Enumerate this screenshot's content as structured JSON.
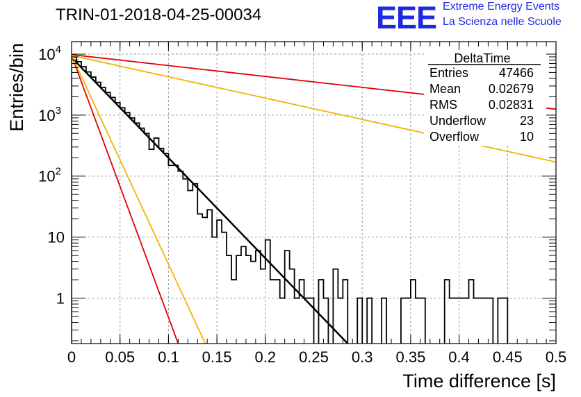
{
  "header": {
    "title": "TRIN-01-2018-04-25-00034",
    "logo_text": "EEE",
    "logo_line1": "Extreme Energy Events",
    "logo_line2": "La Scienza nelle Scuole",
    "logo_color": "#1f2ae0"
  },
  "stats_box": {
    "title": "DeltaTime",
    "rows": [
      {
        "label": "Entries",
        "value": "47466"
      },
      {
        "label": "Mean",
        "value": "0.02679"
      },
      {
        "label": "RMS",
        "value": "0.02831"
      },
      {
        "label": "Underflow",
        "value": "23"
      },
      {
        "label": "Overflow",
        "value": "10"
      }
    ]
  },
  "chart_data": {
    "type": "bar",
    "style": "step-histogram",
    "xlabel": "Time difference [s]",
    "ylabel": "Entries/bin",
    "xlim": [
      0,
      0.5
    ],
    "ylim": [
      0.18,
      16000
    ],
    "yscale": "log",
    "grid": true,
    "x_ticks": [
      {
        "value": 0,
        "label": "0"
      },
      {
        "value": 0.05,
        "label": "0.05"
      },
      {
        "value": 0.1,
        "label": "0.1"
      },
      {
        "value": 0.15,
        "label": "0.15"
      },
      {
        "value": 0.2,
        "label": "0.2"
      },
      {
        "value": 0.25,
        "label": "0.25"
      },
      {
        "value": 0.3,
        "label": "0.3"
      },
      {
        "value": 0.35,
        "label": "0.35"
      },
      {
        "value": 0.4,
        "label": "0.4"
      },
      {
        "value": 0.45,
        "label": "0.45"
      },
      {
        "value": 0.5,
        "label": "0.5"
      }
    ],
    "y_ticks": [
      {
        "value": 1,
        "label": "1"
      },
      {
        "value": 10,
        "label": "10"
      },
      {
        "value": 100,
        "label": "10",
        "exp": "2"
      },
      {
        "value": 1000,
        "label": "10",
        "exp": "3"
      },
      {
        "value": 10000,
        "label": "10",
        "exp": "4"
      }
    ],
    "bin_width": 0.005,
    "histogram": {
      "color": "#000000",
      "values": [
        9000,
        7500,
        6200,
        5100,
        4200,
        3450,
        2850,
        2350,
        1950,
        1600,
        1320,
        1100,
        900,
        740,
        610,
        500,
        275,
        420,
        285,
        235,
        150,
        150,
        120,
        90,
        58,
        75,
        24,
        21,
        28,
        10,
        19,
        12,
        5,
        2,
        5,
        7,
        5,
        4,
        6,
        3,
        9,
        2,
        2,
        1,
        6,
        3,
        1,
        2,
        1,
        1,
        0.1,
        2,
        1,
        0.1,
        3,
        1,
        2,
        0.1,
        0.1,
        1,
        0.1,
        1,
        0.1,
        0.1,
        1,
        0.1,
        0.1,
        0.1,
        1,
        1,
        2,
        1,
        1,
        0.1,
        0.1,
        0.1,
        0.1,
        2,
        1,
        1,
        1,
        1,
        2,
        1,
        1,
        1,
        1,
        0.1,
        1,
        1,
        0.1,
        0.1,
        0.1,
        0.1,
        0.1,
        0.1,
        0.1,
        0.1,
        0.1,
        0.1
      ]
    },
    "curves": [
      {
        "color": "#000000",
        "width": 2.5,
        "points": [
          [
            0,
            8800
          ],
          [
            0.285,
            0.18
          ]
        ]
      },
      {
        "color": "#e00000",
        "width": 1.8,
        "points": [
          [
            0,
            9800
          ],
          [
            0.5,
            1250
          ]
        ]
      },
      {
        "color": "#f0b400",
        "width": 1.8,
        "points": [
          [
            0,
            9500
          ],
          [
            0.5,
            170
          ]
        ]
      },
      {
        "color": "#e00000",
        "width": 1.8,
        "points": [
          [
            0,
            9500
          ],
          [
            0.11,
            0.18
          ]
        ]
      },
      {
        "color": "#f0b400",
        "width": 1.8,
        "points": [
          [
            0,
            9500
          ],
          [
            0.138,
            0.18
          ]
        ]
      }
    ]
  }
}
